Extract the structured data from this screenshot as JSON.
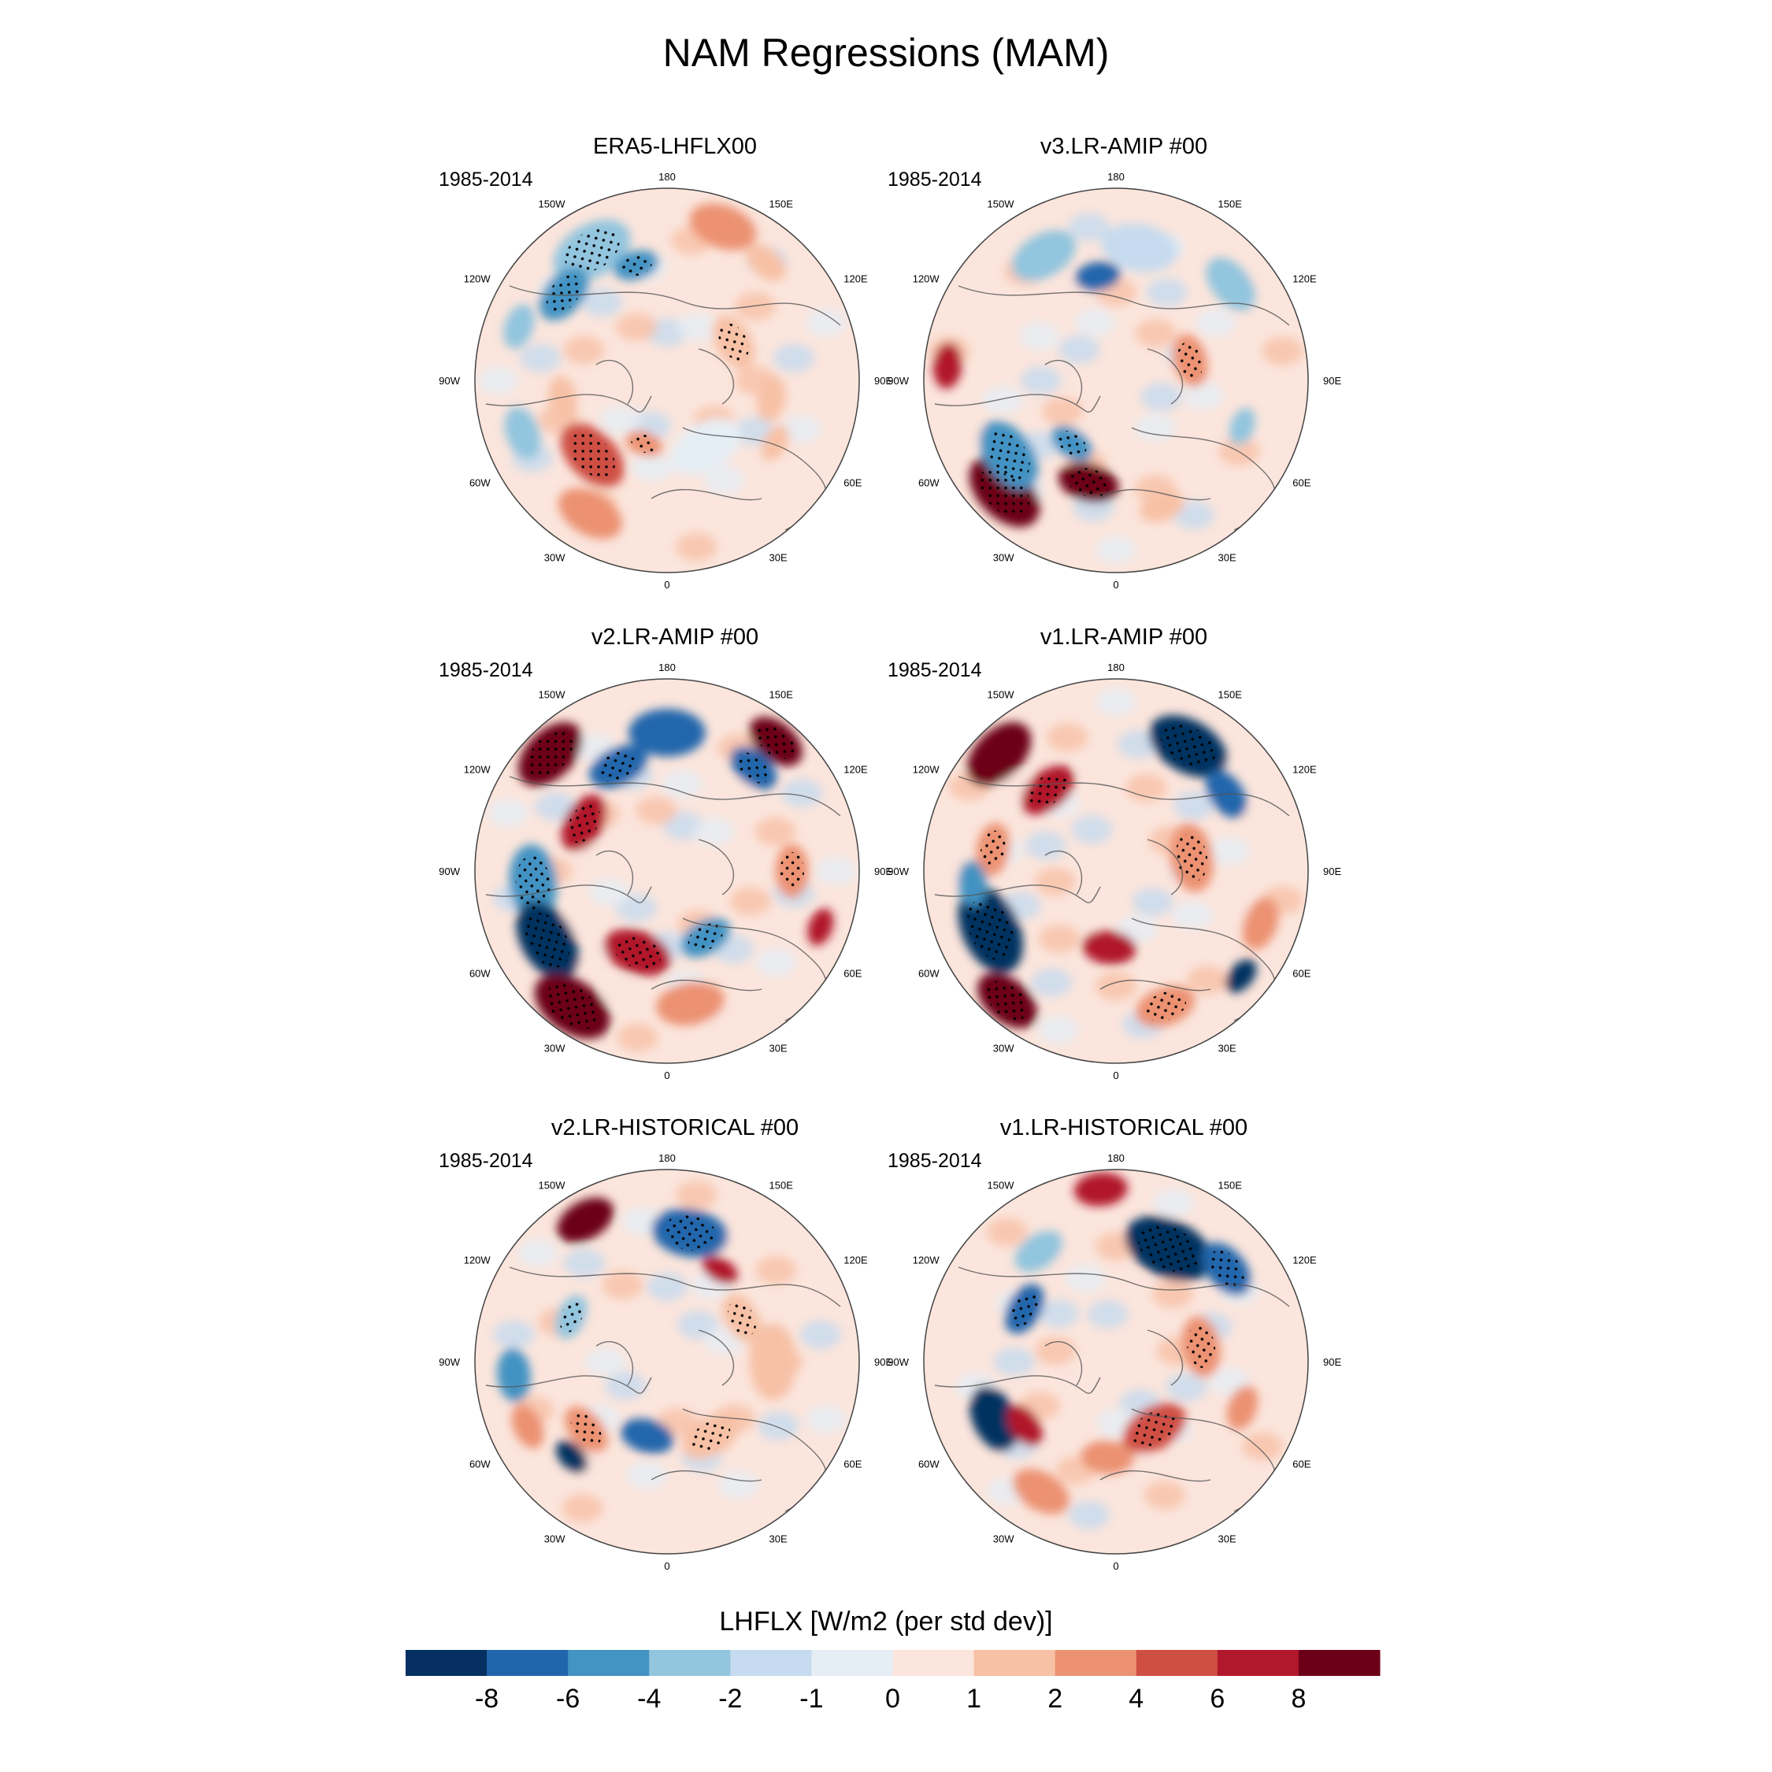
{
  "figure": {
    "title": "NAM Regressions (MAM)"
  },
  "panels": [
    {
      "title": "ERA5-LHFLX00",
      "period": "1985-2014",
      "pattern": "era5",
      "lon_labels": [
        "180",
        "150E",
        "120E",
        "90E",
        "60E",
        "30E",
        "0",
        "30W",
        "60W",
        "90W",
        "120W",
        "150W"
      ]
    },
    {
      "title": "v3.LR-AMIP  #00",
      "period": "1985-2014",
      "pattern": "v3amip",
      "lon_labels": [
        "180",
        "150E",
        "120E",
        "90E",
        "60E",
        "30E",
        "0",
        "30W",
        "60W",
        "90W",
        "120W",
        "150W"
      ]
    },
    {
      "title": "v2.LR-AMIP  #00",
      "period": "1985-2014",
      "pattern": "v2amip",
      "lon_labels": [
        "180",
        "150E",
        "120E",
        "90E",
        "60E",
        "30E",
        "0",
        "30W",
        "60W",
        "90W",
        "120W",
        "150W"
      ]
    },
    {
      "title": "v1.LR-AMIP  #00",
      "period": "1985-2014",
      "pattern": "v1amip",
      "lon_labels": [
        "180",
        "150E",
        "120E",
        "90E",
        "60E",
        "30E",
        "0",
        "30W",
        "60W",
        "90W",
        "120W",
        "150W"
      ]
    },
    {
      "title": "v2.LR-HISTORICAL  #00",
      "period": "1985-2014",
      "pattern": "v2hist",
      "lon_labels": [
        "180",
        "150E",
        "120E",
        "90E",
        "60E",
        "30E",
        "0",
        "30W",
        "60W",
        "90W",
        "120W",
        "150W"
      ]
    },
    {
      "title": "v1.LR-HISTORICAL  #00",
      "period": "1985-2014",
      "pattern": "v1hist",
      "lon_labels": [
        "180",
        "150E",
        "120E",
        "90E",
        "60E",
        "30E",
        "0",
        "30W",
        "60W",
        "90W",
        "120W",
        "150W"
      ]
    }
  ],
  "colorbar": {
    "title": "LHFLX [W/m2 (per std dev)]",
    "ticks": [
      "-8",
      "-6",
      "-4",
      "-2",
      "-1",
      "0",
      "1",
      "2",
      "4",
      "6",
      "8"
    ],
    "colors": [
      "#053061",
      "#2166ac",
      "#4393c3",
      "#92c5de",
      "#c6dbef",
      "#e6eef5",
      "#fbe5dc",
      "#f7c1a6",
      "#ec9272",
      "#cf4f44",
      "#b1182b",
      "#6c0019"
    ]
  }
}
